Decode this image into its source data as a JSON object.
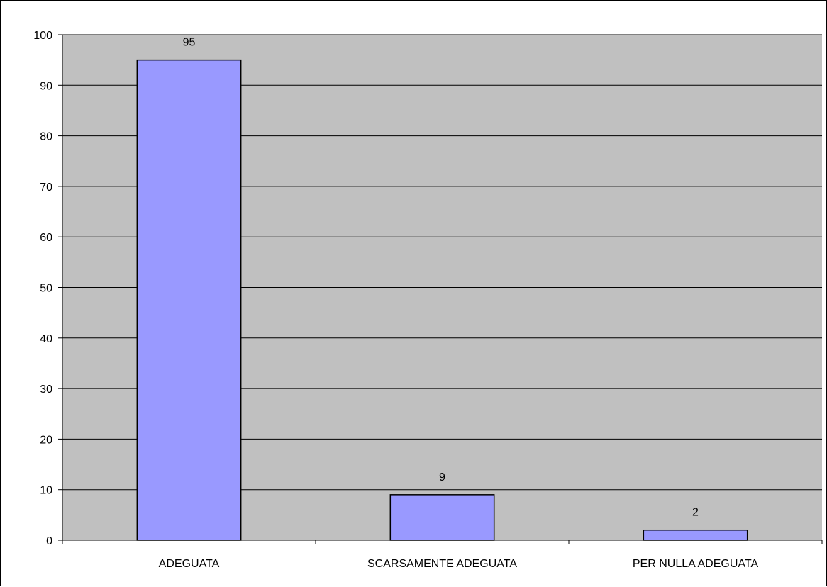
{
  "chart_data": {
    "type": "bar",
    "categories": [
      "ADEGUATA",
      "SCARSAMENTE ADEGUATA",
      "PER NULLA ADEGUATA"
    ],
    "values": [
      95,
      9,
      2
    ],
    "data_labels": [
      "95",
      "9",
      "2"
    ],
    "title": "",
    "xlabel": "",
    "ylabel": "",
    "ylim": [
      0,
      100
    ],
    "yticks": [
      0,
      10,
      20,
      30,
      40,
      50,
      60,
      70,
      80,
      90,
      100
    ],
    "grid": true,
    "legend": "none",
    "colors": {
      "bar_fill": "#9999ff",
      "bar_stroke": "#000000",
      "plot_background": "#c0c0c0",
      "gridline": "#000000"
    }
  }
}
